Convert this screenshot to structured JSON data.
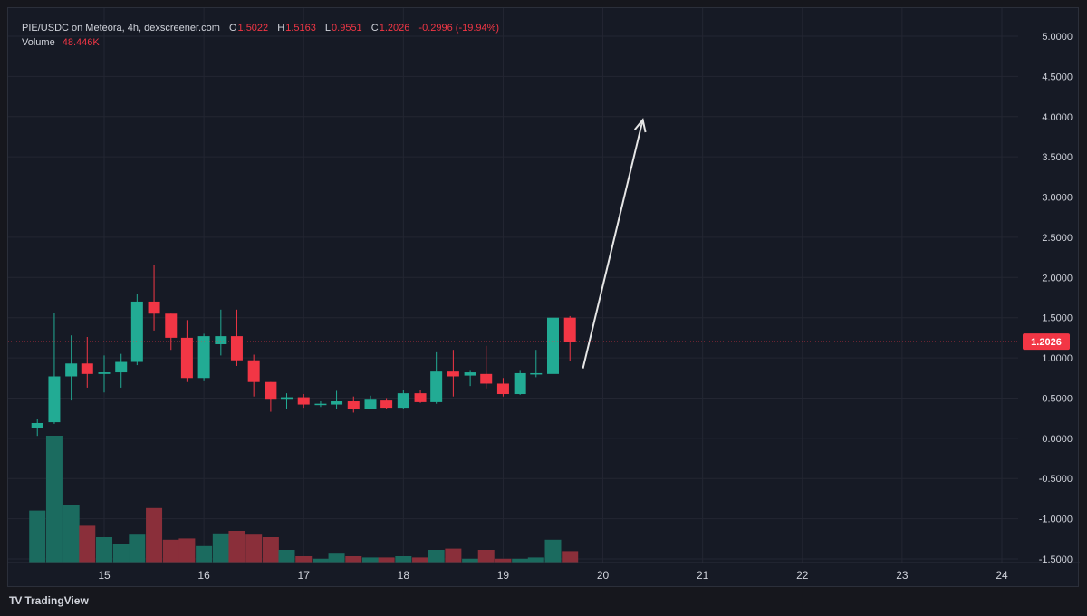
{
  "header": {
    "pair": "PIE/USDC on Meteora, 4h, dexscreener.com",
    "open_label": "O",
    "open": "1.5022",
    "high_label": "H",
    "high": "1.5163",
    "low_label": "L",
    "low": "0.9551",
    "close_label": "C",
    "close": "1.2026",
    "change": "-0.2996 (-19.94%)",
    "volume_label": "Volume",
    "volume": "48.446K"
  },
  "footer": {
    "brand": "TradingView",
    "logo_glyph": "TV"
  },
  "colors": {
    "up": "#22ab94",
    "down": "#f23645",
    "vol_up": "#1b6b5f",
    "vol_down": "#8a2f3a",
    "grid": "#232632",
    "bg": "#161a25",
    "arrow": "#e6e6e6"
  },
  "chart_data": {
    "type": "candlestick",
    "title": "PIE/USDC on Meteora, 4h, dexscreener.com",
    "xlabel": "",
    "ylabel": "",
    "ylim": [
      -1.5,
      5.0
    ],
    "yticks": [
      "5.0000",
      "4.5000",
      "4.0000",
      "3.5000",
      "3.0000",
      "2.5000",
      "2.0000",
      "1.5000",
      "1.0000",
      "0.5000",
      "0.0000",
      "-0.5000",
      "-1.0000",
      "-1.5000"
    ],
    "ytick_values": [
      5.0,
      4.5,
      4.0,
      3.5,
      3.0,
      2.5,
      2.0,
      1.5,
      1.0,
      0.5,
      0.0,
      -0.5,
      -1.0,
      -1.5
    ],
    "xlim": [
      14.3,
      24.5
    ],
    "xticks": [
      "15",
      "16",
      "17",
      "18",
      "19",
      "20",
      "21",
      "22",
      "23",
      "24"
    ],
    "xtick_values": [
      15,
      16,
      17,
      18,
      19,
      20,
      21,
      22,
      23,
      24
    ],
    "last_price": 1.2026,
    "last_price_label": "1.2026",
    "candles": [
      {
        "t": 14.33,
        "o": 0.13,
        "h": 0.24,
        "l": 0.03,
        "c": 0.19,
        "v": 4.1
      },
      {
        "t": 14.5,
        "o": 0.2,
        "h": 1.56,
        "l": 0.18,
        "c": 0.77,
        "v": 10.0
      },
      {
        "t": 14.67,
        "o": 0.77,
        "h": 1.28,
        "l": 0.47,
        "c": 0.93,
        "v": 4.5
      },
      {
        "t": 14.83,
        "o": 0.93,
        "h": 1.26,
        "l": 0.63,
        "c": 0.8,
        "v": 2.9
      },
      {
        "t": 15.0,
        "o": 0.8,
        "h": 1.03,
        "l": 0.57,
        "c": 0.82,
        "v": 2.0
      },
      {
        "t": 15.17,
        "o": 0.82,
        "h": 1.05,
        "l": 0.63,
        "c": 0.95,
        "v": 1.5
      },
      {
        "t": 15.33,
        "o": 0.95,
        "h": 1.8,
        "l": 0.91,
        "c": 1.7,
        "v": 2.2
      },
      {
        "t": 15.5,
        "o": 1.7,
        "h": 2.16,
        "l": 1.34,
        "c": 1.55,
        "v": 4.3
      },
      {
        "t": 15.67,
        "o": 1.55,
        "h": 1.55,
        "l": 1.1,
        "c": 1.25,
        "v": 1.8
      },
      {
        "t": 15.83,
        "o": 1.25,
        "h": 1.47,
        "l": 0.7,
        "c": 0.75,
        "v": 1.9
      },
      {
        "t": 16.0,
        "o": 0.75,
        "h": 1.3,
        "l": 0.71,
        "c": 1.27,
        "v": 1.3
      },
      {
        "t": 16.17,
        "o": 1.17,
        "h": 1.6,
        "l": 1.03,
        "c": 1.27,
        "v": 2.3
      },
      {
        "t": 16.33,
        "o": 1.27,
        "h": 1.6,
        "l": 0.9,
        "c": 0.97,
        "v": 2.5
      },
      {
        "t": 16.5,
        "o": 0.97,
        "h": 1.04,
        "l": 0.52,
        "c": 0.7,
        "v": 2.2
      },
      {
        "t": 16.67,
        "o": 0.7,
        "h": 0.7,
        "l": 0.33,
        "c": 0.48,
        "v": 2.0
      },
      {
        "t": 16.83,
        "o": 0.48,
        "h": 0.56,
        "l": 0.37,
        "c": 0.51,
        "v": 1.0
      },
      {
        "t": 17.0,
        "o": 0.51,
        "h": 0.55,
        "l": 0.38,
        "c": 0.42,
        "v": 0.5
      },
      {
        "t": 17.17,
        "o": 0.43,
        "h": 0.46,
        "l": 0.39,
        "c": 0.43,
        "v": 0.3
      },
      {
        "t": 17.33,
        "o": 0.42,
        "h": 0.59,
        "l": 0.37,
        "c": 0.46,
        "v": 0.7
      },
      {
        "t": 17.5,
        "o": 0.46,
        "h": 0.52,
        "l": 0.32,
        "c": 0.37,
        "v": 0.5
      },
      {
        "t": 17.67,
        "o": 0.37,
        "h": 0.53,
        "l": 0.36,
        "c": 0.48,
        "v": 0.4
      },
      {
        "t": 17.83,
        "o": 0.47,
        "h": 0.5,
        "l": 0.36,
        "c": 0.38,
        "v": 0.4
      },
      {
        "t": 18.0,
        "o": 0.38,
        "h": 0.6,
        "l": 0.37,
        "c": 0.56,
        "v": 0.5
      },
      {
        "t": 18.17,
        "o": 0.56,
        "h": 0.6,
        "l": 0.44,
        "c": 0.45,
        "v": 0.4
      },
      {
        "t": 18.33,
        "o": 0.45,
        "h": 1.07,
        "l": 0.43,
        "c": 0.83,
        "v": 1.0
      },
      {
        "t": 18.5,
        "o": 0.83,
        "h": 1.1,
        "l": 0.52,
        "c": 0.77,
        "v": 1.1
      },
      {
        "t": 18.67,
        "o": 0.78,
        "h": 0.85,
        "l": 0.65,
        "c": 0.82,
        "v": 0.3
      },
      {
        "t": 18.83,
        "o": 0.8,
        "h": 1.15,
        "l": 0.62,
        "c": 0.68,
        "v": 1.0
      },
      {
        "t": 19.0,
        "o": 0.68,
        "h": 0.75,
        "l": 0.52,
        "c": 0.55,
        "v": 0.3
      },
      {
        "t": 19.17,
        "o": 0.55,
        "h": 0.85,
        "l": 0.54,
        "c": 0.81,
        "v": 0.3
      },
      {
        "t": 19.33,
        "o": 0.81,
        "h": 1.1,
        "l": 0.76,
        "c": 0.81,
        "v": 0.4
      },
      {
        "t": 19.5,
        "o": 0.8,
        "h": 1.65,
        "l": 0.75,
        "c": 1.5,
        "v": 1.8
      },
      {
        "t": 19.67,
        "o": 1.5,
        "h": 1.52,
        "l": 0.96,
        "c": 1.2,
        "v": 0.9
      }
    ],
    "annotation": {
      "type": "arrow",
      "from_t": 19.8,
      "from_p": 0.87,
      "to_t": 20.4,
      "to_p": 3.96
    },
    "volume_max": 10.0
  }
}
